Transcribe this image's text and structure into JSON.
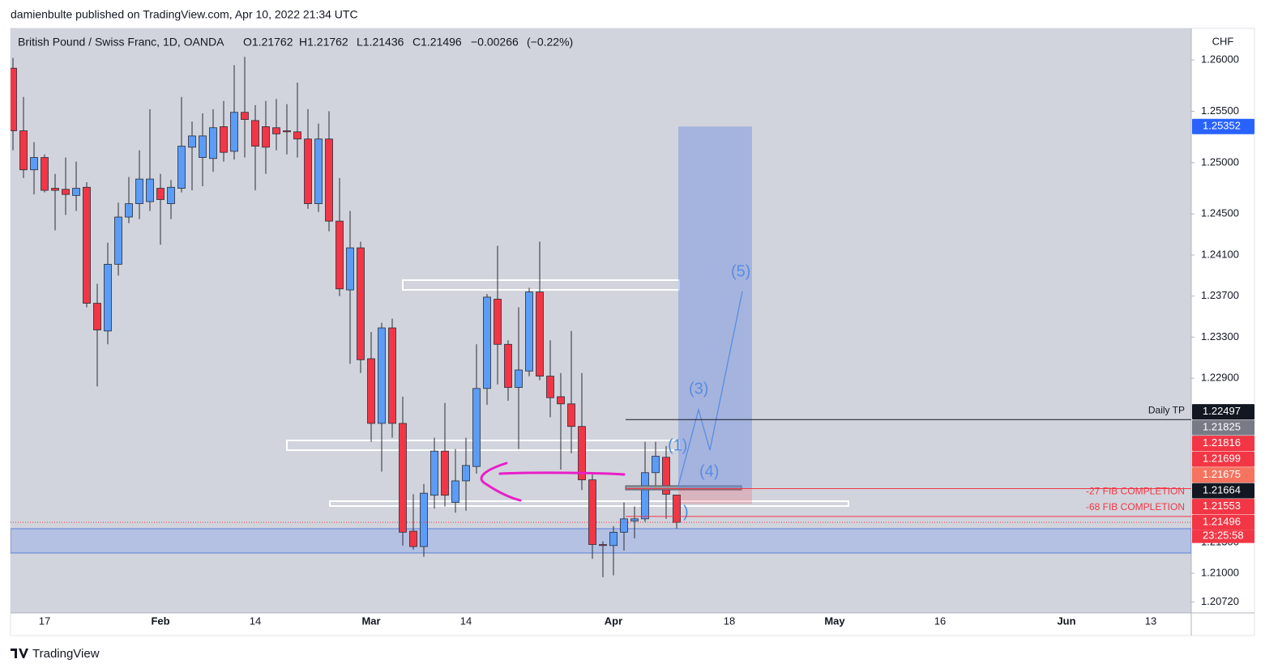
{
  "header": {
    "publisher": "damienbulte published on TradingView.com, Apr 10, 2022 21:34 UTC"
  },
  "chart_data": {
    "type": "candlestick",
    "title": "British Pound / Swiss Franc, 1D, OANDA",
    "ohlc_legend": [
      {
        "value": 1.21762,
        "label": "O1.21762"
      },
      {
        "value": 1.21762,
        "label": "H1.21762"
      },
      {
        "value": 1.21436,
        "label": "L1.21436"
      },
      {
        "value": 1.21496,
        "label": "C1.21496"
      },
      {
        "value": -0.00266,
        "label": "−0.00266"
      },
      {
        "value": -0.22,
        "label": "(−0.22%)"
      }
    ],
    "currency": "CHF",
    "categories": [
      null,
      null,
      null,
      "17",
      null,
      null,
      null,
      null,
      null,
      null,
      null,
      null,
      null,
      null,
      "Feb",
      null,
      null,
      null,
      null,
      null,
      null,
      null,
      null,
      "14",
      null,
      null,
      null,
      null,
      null,
      null,
      null,
      null,
      null,
      null,
      "Mar",
      null,
      null,
      null,
      null,
      null,
      null,
      null,
      null,
      "14",
      null,
      null,
      null,
      null,
      null,
      null,
      null,
      null,
      null,
      null,
      null,
      null,
      null,
      "Apr",
      null,
      null,
      null,
      null,
      null,
      null,
      null,
      null,
      null,
      null,
      "18",
      null,
      null,
      null,
      null,
      null,
      null,
      null,
      null,
      null,
      "May",
      null,
      null,
      null,
      null,
      null,
      null,
      null,
      null,
      null,
      "16",
      null,
      null,
      null,
      null,
      null,
      null,
      null,
      null,
      null,
      null,
      null,
      "Jun",
      null,
      null,
      null,
      null,
      null,
      null,
      null,
      "13",
      null,
      null,
      null
    ],
    "open": [
      1.2592,
      1.2531,
      1.2493,
      1.2505,
      1.2475,
      1.2474,
      1.2468,
      1.2476,
      1.2363,
      1.2336,
      1.2401,
      1.2447,
      1.246,
      1.2462,
      1.2475,
      1.246,
      1.2475,
      1.2515,
      1.2505,
      1.2504,
      1.2535,
      1.2511,
      1.2549,
      1.2541,
      1.2535,
      1.2534,
      1.2531,
      1.253,
      1.2523,
      1.246,
      1.2523,
      1.2443,
      1.2376,
      1.2417,
      1.2309,
      1.2246,
      1.2339,
      1.2246,
      1.2141,
      1.2126,
      1.2176,
      1.2219,
      1.2169,
      1.219,
      1.2204,
      1.228,
      1.2367,
      1.2323,
      1.2281,
      1.2297,
      1.2374,
      1.2292,
      1.2272,
      1.2265,
      1.2243,
      1.2191,
      1.2128,
      1.2127,
      1.214,
      1.2151,
      1.2153,
      1.2198,
      1.2213,
      1.21762,
      null,
      null,
      null,
      null,
      null,
      null,
      null,
      null,
      null,
      null,
      null,
      null,
      null,
      null,
      null,
      null,
      null,
      null,
      null,
      null,
      null,
      null,
      null,
      null,
      null,
      null,
      null,
      null,
      null,
      null,
      null,
      null,
      null,
      null,
      null,
      null,
      null,
      null,
      null,
      null,
      null,
      null,
      null,
      null,
      null,
      null,
      null,
      null
    ],
    "high": [
      1.2602,
      1.2564,
      1.252,
      1.2508,
      1.2489,
      1.2505,
      1.2501,
      1.2481,
      1.2382,
      1.2422,
      1.2461,
      1.2486,
      1.2512,
      1.2552,
      1.2489,
      1.2483,
      1.2564,
      1.254,
      1.2548,
      1.2552,
      1.256,
      1.2595,
      1.2603,
      1.2556,
      1.256,
      1.2562,
      1.2557,
      1.2578,
      1.2552,
      1.2538,
      1.255,
      1.2485,
      1.2453,
      1.2423,
      1.2335,
      1.2344,
      1.2348,
      1.2272,
      1.2177,
      1.2187,
      1.2232,
      1.2266,
      1.2221,
      1.2232,
      1.2323,
      1.2372,
      1.2419,
      1.2327,
      1.2359,
      1.2378,
      1.2423,
      1.2327,
      1.2295,
      1.2336,
      1.2295,
      1.2197,
      1.2131,
      1.2146,
      1.2169,
      1.2165,
      1.2228,
      1.2228,
      1.2224,
      1.21762,
      null,
      null,
      null,
      null,
      null,
      null,
      null,
      null,
      null,
      null,
      null,
      null,
      null,
      null,
      null,
      null,
      null,
      null,
      null,
      null,
      null,
      null,
      null,
      null,
      null,
      null,
      null,
      null,
      null,
      null,
      null,
      null,
      null,
      null,
      null,
      null,
      null,
      null,
      null,
      null,
      null,
      null,
      null,
      null,
      null,
      null,
      null,
      null
    ],
    "low": [
      1.2512,
      1.2485,
      1.2469,
      1.2471,
      1.2434,
      1.2449,
      1.2453,
      1.2359,
      1.2282,
      1.2323,
      1.239,
      1.2441,
      1.2445,
      1.2453,
      1.242,
      1.2445,
      1.2471,
      1.2473,
      1.2477,
      1.2491,
      1.2501,
      1.2503,
      1.2505,
      1.2473,
      1.2489,
      1.2512,
      1.2508,
      1.2505,
      1.2455,
      1.2452,
      1.2433,
      1.237,
      1.2304,
      1.2295,
      1.2228,
      1.2199,
      1.2232,
      1.2127,
      1.2123,
      1.2116,
      1.2163,
      1.2165,
      1.2159,
      1.2161,
      1.2197,
      1.2264,
      1.2284,
      1.2268,
      1.2221,
      1.2292,
      1.2288,
      1.2252,
      1.2201,
      1.2217,
      1.2181,
      1.2114,
      1.2096,
      1.2098,
      1.2122,
      1.2134,
      1.215,
      1.2185,
      1.2153,
      1.21436,
      null,
      null,
      null,
      null,
      null,
      null,
      null,
      null,
      null,
      null,
      null,
      null,
      null,
      null,
      null,
      null,
      null,
      null,
      null,
      null,
      null,
      null,
      null,
      null,
      null,
      null,
      null,
      null,
      null,
      null,
      null,
      null,
      null,
      null,
      null,
      null,
      null,
      null,
      null,
      null,
      null,
      null,
      null,
      null,
      null,
      null,
      null,
      null
    ],
    "close": [
      1.2531,
      1.2493,
      1.2505,
      1.2473,
      1.2473,
      1.2469,
      1.2475,
      1.2363,
      1.2337,
      1.2401,
      1.2447,
      1.246,
      1.2484,
      1.2484,
      1.2464,
      1.2476,
      1.2516,
      1.2526,
      1.2526,
      1.2534,
      1.251,
      1.2549,
      1.2542,
      1.2516,
      1.2515,
      1.2528,
      1.253,
      1.2523,
      1.246,
      1.2523,
      1.2443,
      1.2377,
      1.2417,
      1.2308,
      1.2246,
      1.2339,
      1.2246,
      1.214,
      1.2126,
      1.2178,
      1.2219,
      1.2176,
      1.219,
      1.2205,
      1.228,
      1.2369,
      1.2323,
      1.2281,
      1.2298,
      1.2374,
      1.2292,
      1.2271,
      1.2265,
      1.2243,
      1.2191,
      1.2128,
      1.2127,
      1.214,
      1.2153,
      1.2153,
      1.2198,
      1.2214,
      1.2177,
      1.21496,
      null,
      null,
      null,
      null,
      null,
      null,
      null,
      null,
      null,
      null,
      null,
      null,
      null,
      null,
      null,
      null,
      null,
      null,
      null,
      null,
      null,
      null,
      null,
      null,
      null,
      null,
      null,
      null,
      null,
      null,
      null,
      null,
      null,
      null,
      null,
      null,
      null,
      null,
      null,
      null,
      null,
      null,
      null,
      null,
      null,
      null,
      null,
      null
    ],
    "up_color": "#5b9cf6",
    "down_color": "#f23645",
    "wick_color": "#2a2e39",
    "ylim": [
      1.20614,
      1.26308
    ],
    "yticks": [
      {
        "value": 1.26,
        "label": "1.26000"
      },
      {
        "value": 1.255,
        "label": "1.25500"
      },
      {
        "value": 1.25,
        "label": "1.25000"
      },
      {
        "value": 1.245,
        "label": "1.24500"
      },
      {
        "value": 1.241,
        "label": "1.24100"
      },
      {
        "value": 1.237,
        "label": "1.23700"
      },
      {
        "value": 1.233,
        "label": "1.23300"
      },
      {
        "value": 1.229,
        "label": "1.22900"
      },
      {
        "value": 1.213,
        "label": "1.21300"
      },
      {
        "value": 1.21,
        "label": "1.21000"
      },
      {
        "value": 1.2072,
        "label": "1.20720"
      }
    ],
    "price_labels": [
      {
        "value": 1.25352,
        "color": "#2962ff"
      },
      {
        "value": 1.22497,
        "color": "#131722"
      },
      {
        "value": 1.21825,
        "color": "#787b86"
      },
      {
        "value": 1.21816,
        "color": "#f23645"
      },
      {
        "value": 1.21699,
        "color": "#f23645"
      },
      {
        "value": 1.21675,
        "color": "#f5735f"
      },
      {
        "value": 1.21664,
        "color": "#131722"
      },
      {
        "value": 1.21553,
        "color": "#f23645"
      },
      {
        "value": 1.21496,
        "color": "#f23645"
      }
    ],
    "countdown": "23:25:58",
    "daily_tp_label": "Daily TP",
    "fib_labels": [
      "-27 FIB COMPLETION",
      "-68 FIB COMPLETION"
    ],
    "wave_labels": [
      "(1)",
      "(3)",
      "(4)",
      "(5)",
      ")"
    ]
  },
  "footer": {
    "brand": "TradingView"
  }
}
